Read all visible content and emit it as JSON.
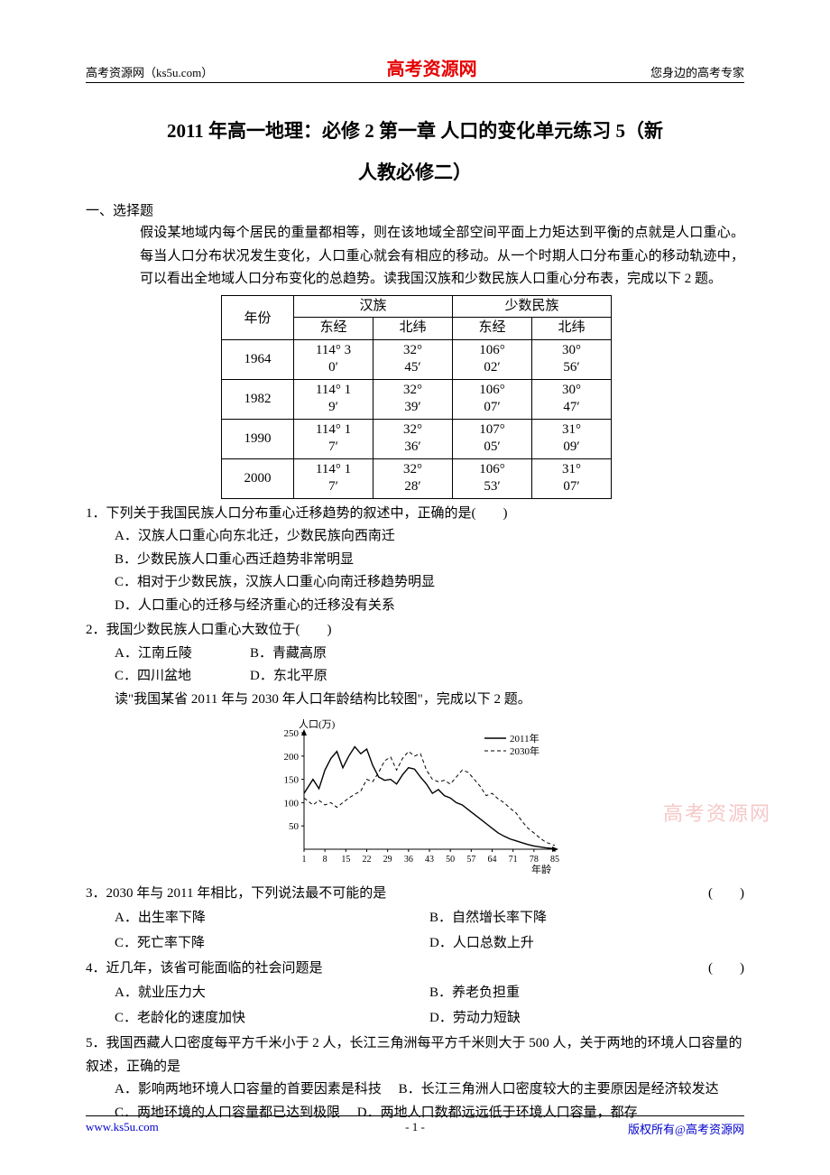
{
  "header": {
    "left": "高考资源网（ks5u.com）",
    "center": "高考资源网",
    "right": "您身边的高考专家"
  },
  "title_line1": "2011 年高一地理：必修 2 第一章  人口的变化单元练习 5（新",
  "title_line2": "人教必修二）",
  "section_heading": "一、选择题",
  "intro": "假设某地域内每个居民的重量都相等，则在该地域全部空间平面上力矩达到平衡的点就是人口重心。每当人口分布状况发生变化，人口重心就会有相应的移动。从一个时期人口分布重心的移动轨迹中，可以看出全地域人口分布变化的总趋势。读我国汉族和少数民族人口重心分布表，完成以下 2 题。",
  "table": {
    "columns": {
      "year": "年份",
      "han": "汉族",
      "minor": "少数民族",
      "lon": "东经",
      "lat": "北纬"
    },
    "rows": [
      {
        "year": "1964",
        "han_lon_a": "114° 3",
        "han_lon_b": "0′",
        "han_lat_a": "32°",
        "han_lat_b": "45′",
        "min_lon_a": "106°",
        "min_lon_b": "02′",
        "min_lat_a": "30°",
        "min_lat_b": "56′"
      },
      {
        "year": "1982",
        "han_lon_a": "114° 1",
        "han_lon_b": "9′",
        "han_lat_a": "32°",
        "han_lat_b": "39′",
        "min_lon_a": "106°",
        "min_lon_b": "07′",
        "min_lat_a": "30°",
        "min_lat_b": "47′"
      },
      {
        "year": "1990",
        "han_lon_a": "114° 1",
        "han_lon_b": "7′",
        "han_lat_a": "32°",
        "han_lat_b": "36′",
        "min_lon_a": "107°",
        "min_lon_b": "05′",
        "min_lat_a": "31°",
        "min_lat_b": "09′"
      },
      {
        "year": "2000",
        "han_lon_a": "114° 1",
        "han_lon_b": "7′",
        "han_lat_a": "32°",
        "han_lat_b": "28′",
        "min_lon_a": "106°",
        "min_lon_b": "53′",
        "min_lat_a": "31°",
        "min_lat_b": "07′"
      }
    ]
  },
  "q1": {
    "stem": "1．下列关于我国民族人口分布重心迁移趋势的叙述中，正确的是(　　)",
    "A": "A．汉族人口重心向东北迁，少数民族向西南迁",
    "B": "B．少数民族人口重心西迁趋势非常明显",
    "C": "C．相对于少数民族，汉族人口重心向南迁移趋势明显",
    "D": "D．人口重心的迁移与经济重心的迁移没有关系"
  },
  "q2": {
    "stem": "2．我国少数民族人口重心大致位于(　　)",
    "A": "A．江南丘陵",
    "B": "B．青藏高原",
    "C": "C．四川盆地",
    "D": "D．东北平原"
  },
  "chart_intro": "读\"我国某省 2011 年与 2030 年人口年龄结构比较图\"，完成以下 2 题。",
  "chart": {
    "type": "line",
    "title_y": "人口(万)",
    "title_x": "年龄",
    "legend": {
      "s2011": "2011年",
      "s2030": "2030年"
    },
    "xticks": [
      1,
      8,
      15,
      22,
      29,
      36,
      43,
      50,
      57,
      64,
      71,
      78,
      85
    ],
    "yticks": [
      0,
      50,
      100,
      150,
      200,
      250
    ],
    "ylim": [
      0,
      250
    ],
    "xlim": [
      1,
      85
    ],
    "line_color": "#000000",
    "line_width_2011": 1.4,
    "line_width_2030": 1.0,
    "dash_2030": "4,3",
    "background": "#ffffff",
    "series_2011": [
      [
        1,
        120
      ],
      [
        4,
        150
      ],
      [
        6,
        130
      ],
      [
        8,
        170
      ],
      [
        10,
        195
      ],
      [
        12,
        210
      ],
      [
        14,
        175
      ],
      [
        16,
        200
      ],
      [
        18,
        220
      ],
      [
        20,
        205
      ],
      [
        22,
        215
      ],
      [
        24,
        180
      ],
      [
        26,
        155
      ],
      [
        28,
        148
      ],
      [
        30,
        150
      ],
      [
        32,
        140
      ],
      [
        34,
        160
      ],
      [
        36,
        175
      ],
      [
        38,
        172
      ],
      [
        40,
        155
      ],
      [
        42,
        140
      ],
      [
        44,
        120
      ],
      [
        46,
        128
      ],
      [
        48,
        115
      ],
      [
        50,
        110
      ],
      [
        52,
        100
      ],
      [
        54,
        95
      ],
      [
        56,
        85
      ],
      [
        58,
        75
      ],
      [
        60,
        65
      ],
      [
        62,
        55
      ],
      [
        64,
        45
      ],
      [
        66,
        35
      ],
      [
        68,
        28
      ],
      [
        70,
        22
      ],
      [
        72,
        18
      ],
      [
        74,
        14
      ],
      [
        76,
        10
      ],
      [
        78,
        7
      ],
      [
        80,
        5
      ],
      [
        82,
        3
      ],
      [
        85,
        1
      ]
    ],
    "series_2030": [
      [
        1,
        110
      ],
      [
        4,
        95
      ],
      [
        6,
        105
      ],
      [
        8,
        95
      ],
      [
        10,
        100
      ],
      [
        12,
        90
      ],
      [
        14,
        100
      ],
      [
        16,
        110
      ],
      [
        18,
        118
      ],
      [
        20,
        125
      ],
      [
        22,
        150
      ],
      [
        24,
        145
      ],
      [
        26,
        165
      ],
      [
        28,
        190
      ],
      [
        30,
        198
      ],
      [
        32,
        170
      ],
      [
        34,
        195
      ],
      [
        36,
        210
      ],
      [
        38,
        200
      ],
      [
        40,
        205
      ],
      [
        42,
        170
      ],
      [
        44,
        150
      ],
      [
        46,
        145
      ],
      [
        48,
        148
      ],
      [
        50,
        140
      ],
      [
        52,
        155
      ],
      [
        54,
        170
      ],
      [
        56,
        165
      ],
      [
        58,
        150
      ],
      [
        60,
        135
      ],
      [
        62,
        115
      ],
      [
        64,
        120
      ],
      [
        66,
        108
      ],
      [
        68,
        100
      ],
      [
        70,
        88
      ],
      [
        72,
        78
      ],
      [
        74,
        60
      ],
      [
        76,
        45
      ],
      [
        78,
        35
      ],
      [
        80,
        24
      ],
      [
        82,
        15
      ],
      [
        85,
        8
      ]
    ]
  },
  "q3": {
    "stem": "3．2030 年与 2011 年相比，下列说法最不可能的是",
    "bracket": "(　　)",
    "A": "A．出生率下降",
    "B": "B．自然增长率下降",
    "C": "C．死亡率下降",
    "D": "D．人口总数上升"
  },
  "q4": {
    "stem": "4．近几年，该省可能面临的社会问题是",
    "bracket": "(　　)",
    "A": "A．就业压力大",
    "B": "B．养老负担重",
    "C": "C．老龄化的速度加快",
    "D": "D．劳动力短缺"
  },
  "q5": {
    "stem": "5．我国西藏人口密度每平方千米小于 2 人，长江三角洲每平方千米则大于 500 人，关于两地的环境人口容量的叙述，正确的是",
    "A": "A．影响两地环境人口容量的首要因素是科技",
    "B": "B．长江三角洲人口密度较大的主要原因是经济较发达",
    "C": "C．两地环境的人口容量都已达到极限",
    "D": "D．两地人口数都远远低于环境人口容量，都存"
  },
  "watermark": "高考资源网",
  "footer": {
    "left": "www.ks5u.com",
    "center": "- 1 -",
    "right": "版权所有@高考资源网"
  }
}
